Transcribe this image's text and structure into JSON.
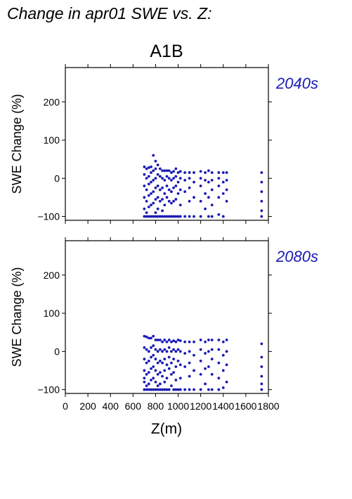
{
  "chart_data": {
    "type": "scatter",
    "title": "Change in apr01 SWE vs. Z:",
    "scenario": "A1B",
    "xlabel": "Z(m)",
    "ylabel": "SWE Change (%)",
    "xlim": [
      0,
      1800
    ],
    "ylim": [
      -110,
      290
    ],
    "xticks": [
      0,
      200,
      400,
      600,
      800,
      1000,
      1200,
      1400,
      1600,
      1800
    ],
    "yticks": [
      -100,
      0,
      100,
      200
    ],
    "grid": false,
    "marker_color": "#1a1ab4",
    "panels": [
      {
        "period": "2040s",
        "points": [
          [
            700,
            30
          ],
          [
            700,
            10
          ],
          [
            700,
            -20
          ],
          [
            700,
            -50
          ],
          [
            700,
            -80
          ],
          [
            700,
            -100
          ],
          [
            720,
            25
          ],
          [
            720,
            0
          ],
          [
            720,
            -30
          ],
          [
            720,
            -60
          ],
          [
            720,
            -90
          ],
          [
            720,
            -100
          ],
          [
            740,
            28
          ],
          [
            740,
            5
          ],
          [
            740,
            -15
          ],
          [
            740,
            -45
          ],
          [
            740,
            -75
          ],
          [
            740,
            -100
          ],
          [
            760,
            30
          ],
          [
            760,
            15
          ],
          [
            760,
            -10
          ],
          [
            760,
            -40
          ],
          [
            760,
            -70
          ],
          [
            760,
            -100
          ],
          [
            780,
            60
          ],
          [
            780,
            20
          ],
          [
            780,
            -5
          ],
          [
            780,
            -35
          ],
          [
            780,
            -65
          ],
          [
            780,
            -100
          ],
          [
            800,
            45
          ],
          [
            800,
            25
          ],
          [
            800,
            0
          ],
          [
            800,
            -25
          ],
          [
            800,
            -55
          ],
          [
            800,
            -90
          ],
          [
            800,
            -100
          ],
          [
            820,
            35
          ],
          [
            820,
            10
          ],
          [
            820,
            -20
          ],
          [
            820,
            -50
          ],
          [
            820,
            -80
          ],
          [
            820,
            -100
          ],
          [
            840,
            25
          ],
          [
            840,
            5
          ],
          [
            840,
            -30
          ],
          [
            840,
            -60
          ],
          [
            840,
            -100
          ],
          [
            860,
            20
          ],
          [
            860,
            0
          ],
          [
            860,
            -25
          ],
          [
            860,
            -55
          ],
          [
            860,
            -85
          ],
          [
            860,
            -100
          ],
          [
            880,
            20
          ],
          [
            880,
            -5
          ],
          [
            880,
            -40
          ],
          [
            880,
            -70
          ],
          [
            880,
            -100
          ],
          [
            900,
            20
          ],
          [
            900,
            5
          ],
          [
            900,
            -20
          ],
          [
            900,
            -50
          ],
          [
            900,
            -100
          ],
          [
            920,
            20
          ],
          [
            920,
            0
          ],
          [
            920,
            -30
          ],
          [
            920,
            -60
          ],
          [
            920,
            -100
          ],
          [
            940,
            15
          ],
          [
            940,
            -5
          ],
          [
            940,
            -35
          ],
          [
            940,
            -65
          ],
          [
            940,
            -100
          ],
          [
            960,
            18
          ],
          [
            960,
            0
          ],
          [
            960,
            -25
          ],
          [
            960,
            -60
          ],
          [
            960,
            -100
          ],
          [
            980,
            25
          ],
          [
            980,
            5
          ],
          [
            980,
            -20
          ],
          [
            980,
            -55
          ],
          [
            980,
            -100
          ],
          [
            1000,
            15
          ],
          [
            1000,
            -10
          ],
          [
            1000,
            -40
          ],
          [
            1000,
            -100
          ],
          [
            1020,
            18
          ],
          [
            1020,
            0
          ],
          [
            1020,
            -30
          ],
          [
            1020,
            -70
          ],
          [
            1020,
            -100
          ],
          [
            1060,
            15
          ],
          [
            1060,
            -5
          ],
          [
            1060,
            -35
          ],
          [
            1060,
            -100
          ],
          [
            1100,
            15
          ],
          [
            1100,
            0
          ],
          [
            1100,
            -25
          ],
          [
            1100,
            -60
          ],
          [
            1100,
            -100
          ],
          [
            1140,
            15
          ],
          [
            1140,
            -10
          ],
          [
            1140,
            -50
          ],
          [
            1140,
            -100
          ],
          [
            1200,
            18
          ],
          [
            1200,
            0
          ],
          [
            1200,
            -20
          ],
          [
            1200,
            -60
          ],
          [
            1200,
            -100
          ],
          [
            1240,
            15
          ],
          [
            1240,
            -5
          ],
          [
            1240,
            -40
          ],
          [
            1240,
            -80
          ],
          [
            1270,
            20
          ],
          [
            1270,
            -10
          ],
          [
            1270,
            -50
          ],
          [
            1270,
            -100
          ],
          [
            1300,
            15
          ],
          [
            1300,
            -5
          ],
          [
            1300,
            -30
          ],
          [
            1300,
            -70
          ],
          [
            1300,
            -100
          ],
          [
            1360,
            15
          ],
          [
            1360,
            0
          ],
          [
            1360,
            -20
          ],
          [
            1360,
            -50
          ],
          [
            1360,
            -95
          ],
          [
            1400,
            15
          ],
          [
            1400,
            -10
          ],
          [
            1400,
            -40
          ],
          [
            1400,
            -100
          ],
          [
            1430,
            15
          ],
          [
            1430,
            -5
          ],
          [
            1430,
            -30
          ],
          [
            1430,
            -60
          ],
          [
            1740,
            15
          ],
          [
            1740,
            -10
          ],
          [
            1740,
            -35
          ],
          [
            1740,
            -60
          ],
          [
            1740,
            -85
          ],
          [
            1740,
            -100
          ]
        ]
      },
      {
        "period": "2080s",
        "points": [
          [
            700,
            40
          ],
          [
            700,
            10
          ],
          [
            700,
            -20
          ],
          [
            700,
            -50
          ],
          [
            700,
            -70
          ],
          [
            700,
            -80
          ],
          [
            700,
            -100
          ],
          [
            720,
            38
          ],
          [
            720,
            5
          ],
          [
            720,
            -30
          ],
          [
            720,
            -60
          ],
          [
            720,
            -90
          ],
          [
            720,
            -100
          ],
          [
            740,
            35
          ],
          [
            740,
            0
          ],
          [
            740,
            -25
          ],
          [
            740,
            -55
          ],
          [
            740,
            -85
          ],
          [
            740,
            -100
          ],
          [
            760,
            35
          ],
          [
            760,
            10
          ],
          [
            760,
            -15
          ],
          [
            760,
            -45
          ],
          [
            760,
            -75
          ],
          [
            760,
            -100
          ],
          [
            780,
            40
          ],
          [
            780,
            15
          ],
          [
            780,
            -10
          ],
          [
            780,
            -40
          ],
          [
            780,
            -70
          ],
          [
            780,
            -100
          ],
          [
            800,
            30
          ],
          [
            800,
            5
          ],
          [
            800,
            -20
          ],
          [
            800,
            -50
          ],
          [
            800,
            -80
          ],
          [
            800,
            -100
          ],
          [
            820,
            30
          ],
          [
            820,
            0
          ],
          [
            820,
            -30
          ],
          [
            820,
            -60
          ],
          [
            820,
            -90
          ],
          [
            820,
            -100
          ],
          [
            840,
            30
          ],
          [
            840,
            5
          ],
          [
            840,
            -25
          ],
          [
            840,
            -55
          ],
          [
            840,
            -85
          ],
          [
            840,
            -100
          ],
          [
            860,
            25
          ],
          [
            860,
            0
          ],
          [
            860,
            -30
          ],
          [
            860,
            -65
          ],
          [
            860,
            -100
          ],
          [
            880,
            30
          ],
          [
            880,
            5
          ],
          [
            880,
            -20
          ],
          [
            880,
            -50
          ],
          [
            880,
            -80
          ],
          [
            880,
            -100
          ],
          [
            900,
            25
          ],
          [
            900,
            0
          ],
          [
            900,
            -35
          ],
          [
            900,
            -70
          ],
          [
            900,
            -100
          ],
          [
            920,
            30
          ],
          [
            920,
            10
          ],
          [
            920,
            -15
          ],
          [
            920,
            -45
          ],
          [
            920,
            -100
          ],
          [
            940,
            25
          ],
          [
            940,
            0
          ],
          [
            940,
            -30
          ],
          [
            940,
            -60
          ],
          [
            940,
            -90
          ],
          [
            960,
            28
          ],
          [
            960,
            5
          ],
          [
            960,
            -20
          ],
          [
            960,
            -55
          ],
          [
            960,
            -100
          ],
          [
            980,
            25
          ],
          [
            980,
            0
          ],
          [
            980,
            -40
          ],
          [
            980,
            -75
          ],
          [
            980,
            -100
          ],
          [
            1000,
            30
          ],
          [
            1000,
            5
          ],
          [
            1000,
            -25
          ],
          [
            1000,
            -100
          ],
          [
            1020,
            28
          ],
          [
            1020,
            0
          ],
          [
            1020,
            -35
          ],
          [
            1020,
            -70
          ],
          [
            1020,
            -100
          ],
          [
            1060,
            25
          ],
          [
            1060,
            -5
          ],
          [
            1060,
            -40
          ],
          [
            1060,
            -100
          ],
          [
            1100,
            25
          ],
          [
            1100,
            0
          ],
          [
            1100,
            -30
          ],
          [
            1100,
            -65
          ],
          [
            1100,
            -100
          ],
          [
            1140,
            25
          ],
          [
            1140,
            -10
          ],
          [
            1140,
            -50
          ],
          [
            1140,
            -100
          ],
          [
            1200,
            30
          ],
          [
            1200,
            5
          ],
          [
            1200,
            -25
          ],
          [
            1200,
            -60
          ],
          [
            1200,
            -100
          ],
          [
            1240,
            25
          ],
          [
            1240,
            -5
          ],
          [
            1240,
            -45
          ],
          [
            1240,
            -85
          ],
          [
            1270,
            30
          ],
          [
            1270,
            0
          ],
          [
            1270,
            -40
          ],
          [
            1270,
            -100
          ],
          [
            1300,
            30
          ],
          [
            1300,
            5
          ],
          [
            1300,
            -20
          ],
          [
            1300,
            -60
          ],
          [
            1300,
            -100
          ],
          [
            1360,
            30
          ],
          [
            1360,
            5
          ],
          [
            1360,
            -30
          ],
          [
            1360,
            -70
          ],
          [
            1360,
            -100
          ],
          [
            1400,
            25
          ],
          [
            1400,
            -10
          ],
          [
            1400,
            -50
          ],
          [
            1400,
            -95
          ],
          [
            1430,
            30
          ],
          [
            1430,
            0
          ],
          [
            1430,
            -35
          ],
          [
            1430,
            -80
          ],
          [
            1740,
            20
          ],
          [
            1740,
            -15
          ],
          [
            1740,
            -40
          ],
          [
            1740,
            -65
          ],
          [
            1740,
            -85
          ],
          [
            1740,
            -100
          ]
        ]
      }
    ]
  }
}
